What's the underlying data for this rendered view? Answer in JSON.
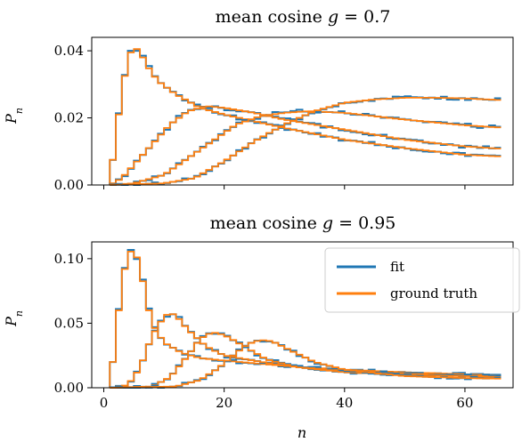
{
  "chart_data": [
    {
      "type": "step",
      "title": "mean cosine g = 0.7",
      "title_parts": {
        "prefix": "mean cosine ",
        "var": "g",
        "suffix": " = 0.7"
      },
      "xlabel": "",
      "ylabel": "Pn",
      "ylabel_parts": {
        "base": "P",
        "sub": "n"
      },
      "xlim": [
        -2,
        68
      ],
      "ylim": [
        0,
        0.044
      ],
      "x_ticks": [
        0,
        20,
        40,
        60
      ],
      "x_tick_labels_visible": false,
      "y_ticks": [
        0.0,
        0.02,
        0.04
      ],
      "y_tick_labels": [
        "0.00",
        "0.02",
        "0.04"
      ],
      "grid": false,
      "bin_range": [
        1,
        66
      ],
      "curve_families": [
        {
          "label_points": "n1",
          "points": [
            [
              1,
              0
            ],
            [
              2,
              0.015
            ],
            [
              3,
              0.027
            ],
            [
              4,
              0.038
            ],
            [
              5,
              0.041
            ],
            [
              6,
              0.04
            ],
            [
              7,
              0.036
            ],
            [
              9,
              0.031
            ],
            [
              12,
              0.027
            ],
            [
              16,
              0.023
            ],
            [
              20,
              0.021
            ],
            [
              30,
              0.017
            ],
            [
              40,
              0.0135
            ],
            [
              50,
              0.011
            ],
            [
              60,
              0.009
            ],
            [
              66,
              0.0085
            ]
          ]
        },
        {
          "label_points": "n2",
          "points": [
            [
              1,
              0
            ],
            [
              3,
              0.002
            ],
            [
              5,
              0.006
            ],
            [
              8,
              0.012
            ],
            [
              11,
              0.018
            ],
            [
              14,
              0.022
            ],
            [
              17,
              0.0235
            ],
            [
              20,
              0.023
            ],
            [
              25,
              0.0215
            ],
            [
              30,
              0.0195
            ],
            [
              40,
              0.0165
            ],
            [
              50,
              0.0135
            ],
            [
              60,
              0.0115
            ],
            [
              66,
              0.0108
            ]
          ]
        },
        {
          "label_points": "n3",
          "points": [
            [
              1,
              0
            ],
            [
              5,
              0.0005
            ],
            [
              10,
              0.003
            ],
            [
              14,
              0.008
            ],
            [
              18,
              0.013
            ],
            [
              22,
              0.018
            ],
            [
              26,
              0.0205
            ],
            [
              30,
              0.0215
            ],
            [
              34,
              0.022
            ],
            [
              40,
              0.0215
            ],
            [
              50,
              0.0195
            ],
            [
              60,
              0.0178
            ],
            [
              66,
              0.0171
            ]
          ]
        },
        {
          "label_points": "n4",
          "points": [
            [
              1,
              0
            ],
            [
              10,
              0.0005
            ],
            [
              15,
              0.002
            ],
            [
              20,
              0.007
            ],
            [
              25,
              0.013
            ],
            [
              30,
              0.018
            ],
            [
              35,
              0.022
            ],
            [
              40,
              0.0245
            ],
            [
              45,
              0.0255
            ],
            [
              50,
              0.026
            ],
            [
              55,
              0.026
            ],
            [
              60,
              0.0258
            ],
            [
              66,
              0.0253
            ]
          ]
        }
      ],
      "series": [
        {
          "name": "fit",
          "color": "#1f77b4"
        },
        {
          "name": "ground truth",
          "color": "#ff7f0e"
        }
      ]
    },
    {
      "type": "step",
      "title": "mean cosine g = 0.95",
      "title_parts": {
        "prefix": "mean cosine ",
        "var": "g",
        "suffix": " = 0.95"
      },
      "xlabel": "n",
      "ylabel": "Pn",
      "ylabel_parts": {
        "base": "P",
        "sub": "n"
      },
      "xlim": [
        -2,
        68
      ],
      "ylim": [
        0,
        0.113
      ],
      "x_ticks": [
        0,
        20,
        40,
        60
      ],
      "x_tick_labels": [
        "0",
        "20",
        "40",
        "60"
      ],
      "y_ticks": [
        0.0,
        0.05,
        0.1
      ],
      "y_tick_labels": [
        "0.00",
        "0.05",
        "0.10"
      ],
      "grid": false,
      "legend": {
        "position": "upper-right",
        "entries": [
          "fit",
          "ground truth"
        ]
      },
      "bin_range": [
        1,
        66
      ],
      "curve_families": [
        {
          "label_points": "n1",
          "points": [
            [
              1,
              0
            ],
            [
              2,
              0.04
            ],
            [
              3,
              0.08
            ],
            [
              4,
              0.104
            ],
            [
              5,
              0.107
            ],
            [
              6,
              0.095
            ],
            [
              7,
              0.07
            ],
            [
              8,
              0.05
            ],
            [
              10,
              0.035
            ],
            [
              13,
              0.027
            ],
            [
              16,
              0.023
            ],
            [
              20,
              0.021
            ],
            [
              30,
              0.017
            ],
            [
              40,
              0.014
            ],
            [
              50,
              0.012
            ],
            [
              60,
              0.0105
            ],
            [
              66,
              0.0095
            ]
          ]
        },
        {
          "label_points": "n2",
          "points": [
            [
              1,
              0
            ],
            [
              4,
              0.002
            ],
            [
              6,
              0.015
            ],
            [
              8,
              0.04
            ],
            [
              10,
              0.055
            ],
            [
              11,
              0.058
            ],
            [
              12,
              0.056
            ],
            [
              14,
              0.045
            ],
            [
              17,
              0.032
            ],
            [
              20,
              0.025
            ],
            [
              30,
              0.017
            ],
            [
              40,
              0.013
            ],
            [
              50,
              0.011
            ],
            [
              60,
              0.0095
            ],
            [
              66,
              0.0085
            ]
          ]
        },
        {
          "label_points": "n3",
          "points": [
            [
              1,
              0
            ],
            [
              8,
              0.001
            ],
            [
              11,
              0.008
            ],
            [
              14,
              0.025
            ],
            [
              16,
              0.038
            ],
            [
              18,
              0.043
            ],
            [
              20,
              0.041
            ],
            [
              23,
              0.033
            ],
            [
              27,
              0.022
            ],
            [
              32,
              0.016
            ],
            [
              40,
              0.012
            ],
            [
              50,
              0.01
            ],
            [
              60,
              0.009
            ],
            [
              66,
              0.0083
            ]
          ]
        },
        {
          "label_points": "n4",
          "points": [
            [
              1,
              0
            ],
            [
              12,
              0.001
            ],
            [
              16,
              0.006
            ],
            [
              19,
              0.015
            ],
            [
              22,
              0.027
            ],
            [
              24,
              0.034
            ],
            [
              26,
              0.037
            ],
            [
              28,
              0.036
            ],
            [
              31,
              0.029
            ],
            [
              35,
              0.02
            ],
            [
              40,
              0.014
            ],
            [
              50,
              0.009
            ],
            [
              60,
              0.0075
            ],
            [
              66,
              0.007
            ]
          ]
        }
      ],
      "series": [
        {
          "name": "fit",
          "color": "#1f77b4"
        },
        {
          "name": "ground truth",
          "color": "#ff7f0e"
        }
      ]
    }
  ]
}
